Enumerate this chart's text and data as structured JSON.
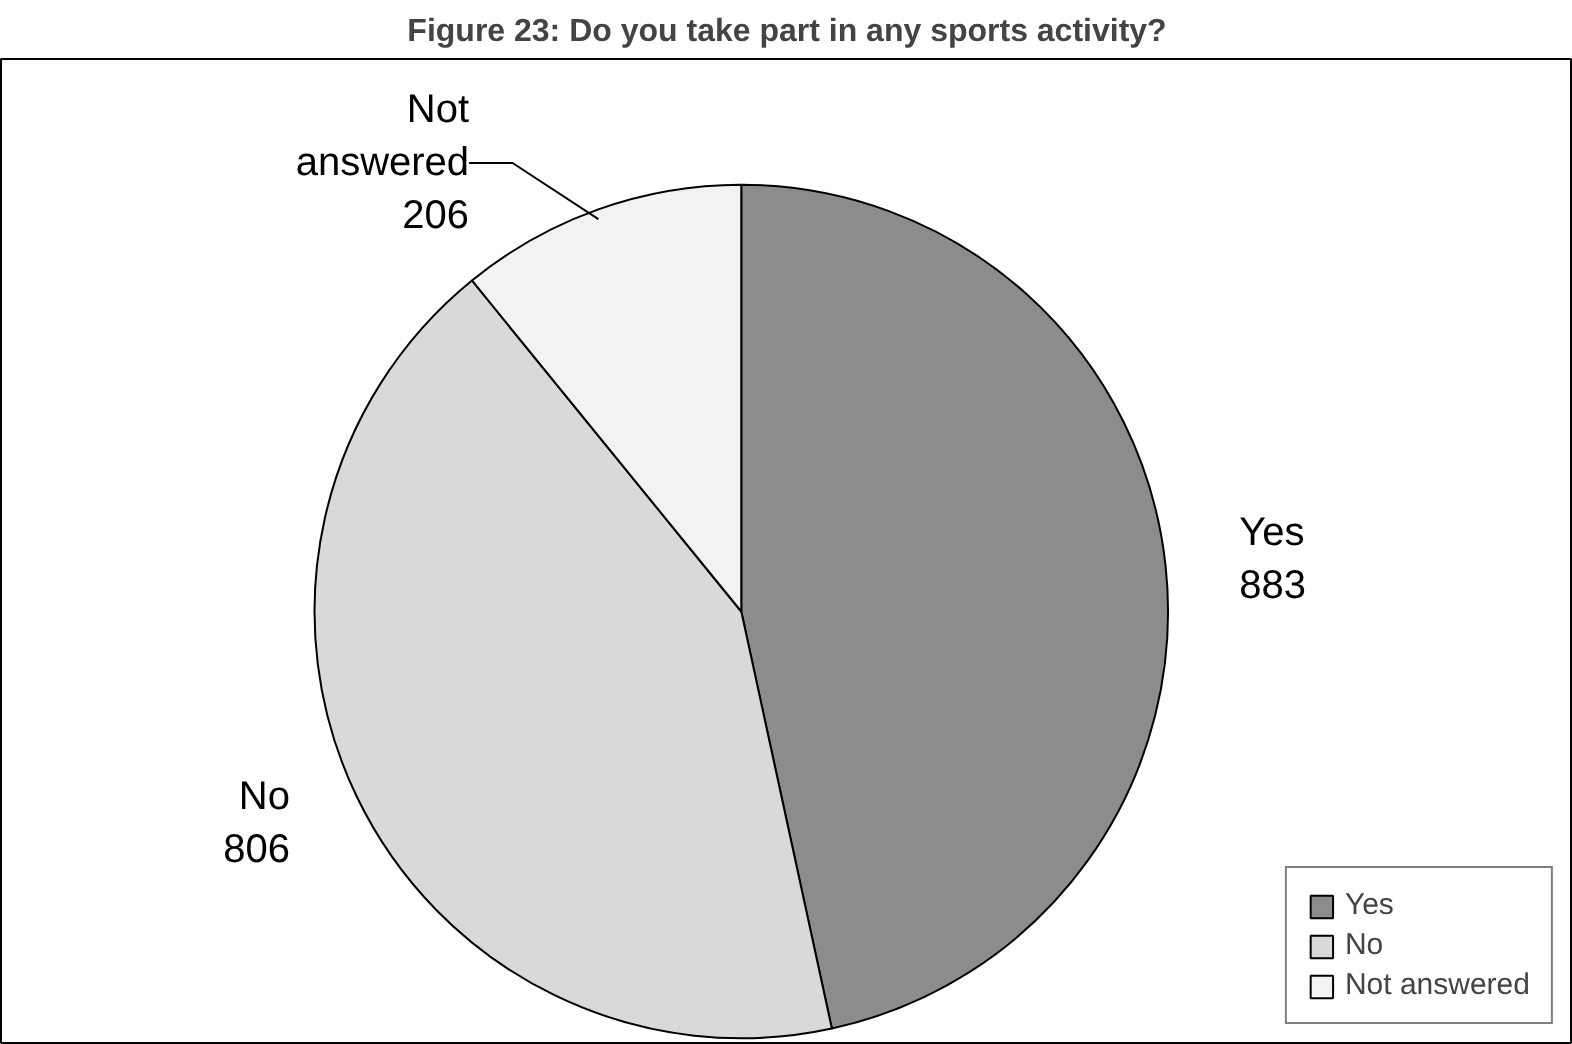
{
  "chart_data": {
    "type": "pie",
    "title": "Figure 23: Do you take part in any sports activity?",
    "categories": [
      "Yes",
      "No",
      "Not answered"
    ],
    "values": [
      883,
      806,
      206
    ],
    "colors": [
      "#8c8c8c",
      "#d9d9d9",
      "#f2f2f2"
    ],
    "data_labels": true,
    "legend": "bottom right"
  }
}
